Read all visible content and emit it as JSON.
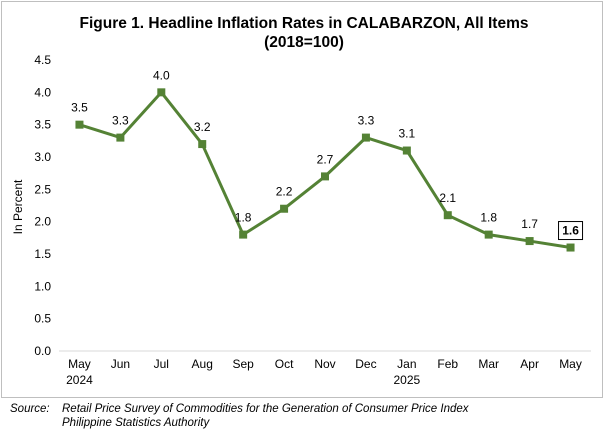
{
  "chart_data": {
    "type": "line",
    "title": "Figure 1. Headline Inflation Rates in CALABARZON, All Items",
    "subtitle": "(2018=100)",
    "ylabel": "In Percent",
    "xlabel": "",
    "ylim": [
      0,
      4.5
    ],
    "yticks": [
      "0.0",
      "0.5",
      "1.0",
      "1.5",
      "2.0",
      "2.5",
      "3.0",
      "3.5",
      "4.0",
      "4.5"
    ],
    "categories": [
      "May",
      "Jun",
      "Jul",
      "Aug",
      "Sep",
      "Oct",
      "Nov",
      "Dec",
      "Jan",
      "Feb",
      "Mar",
      "Apr",
      "May"
    ],
    "category_years": [
      "2024",
      "",
      "",
      "",
      "",
      "",
      "",
      "",
      "2025",
      "",
      "",
      "",
      ""
    ],
    "values": [
      3.5,
      3.3,
      4.0,
      3.2,
      1.8,
      2.2,
      2.7,
      3.3,
      3.1,
      2.1,
      1.8,
      1.7,
      1.6
    ],
    "value_labels": [
      "3.5",
      "3.3",
      "4.0",
      "3.2",
      "1.8",
      "2.2",
      "2.7",
      "3.3",
      "3.1",
      "2.1",
      "1.8",
      "1.7",
      "1.6"
    ],
    "highlight_last_label": true,
    "line_color": "#548235",
    "grid": false,
    "legend": "none"
  },
  "source": {
    "label": "Source:",
    "line1": "Retail Price Survey of Commodities for the Generation of Consumer Price Index",
    "line2": "Philippine Statistics Authority"
  }
}
